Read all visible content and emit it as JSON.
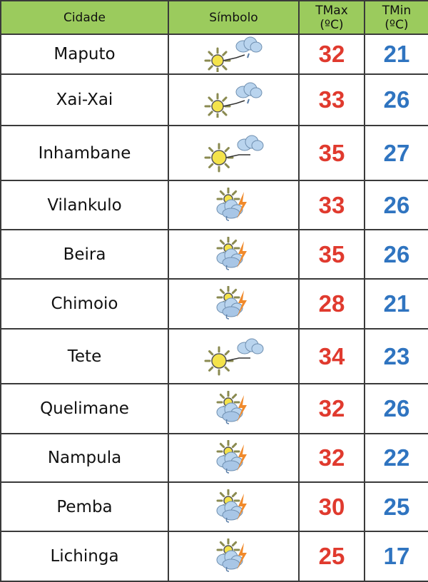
{
  "headers": {
    "city": "Cidade",
    "symbol": "Símbolo",
    "tmax": "TMax",
    "tmax_unit": "(ºC)",
    "tmin": "TMin",
    "tmin_unit": "(ºC)"
  },
  "colors": {
    "header_bg": "#9bcb5d",
    "tmax": "#e03a2e",
    "tmin": "#2f74c0"
  },
  "rows": [
    {
      "city": "Maputo",
      "icon": "sun-cloud-rain-icon",
      "tmax": "32",
      "tmin": "21"
    },
    {
      "city": "Xai-Xai",
      "icon": "sun-cloud-rain-icon",
      "tmax": "33",
      "tmin": "26"
    },
    {
      "city": "Inhambane",
      "icon": "sun-cloud-icon",
      "tmax": "35",
      "tmin": "27"
    },
    {
      "city": "Vilankulo",
      "icon": "thunderstorm-icon",
      "tmax": "33",
      "tmin": "26"
    },
    {
      "city": "Beira",
      "icon": "thunderstorm-icon",
      "tmax": "35",
      "tmin": "26"
    },
    {
      "city": "Chimoio",
      "icon": "thunderstorm-icon",
      "tmax": "28",
      "tmin": "21"
    },
    {
      "city": "Tete",
      "icon": "sun-cloud-icon",
      "tmax": "34",
      "tmin": "23"
    },
    {
      "city": "Quelimane",
      "icon": "thunderstorm-icon",
      "tmax": "32",
      "tmin": "26"
    },
    {
      "city": "Nampula",
      "icon": "thunderstorm-icon",
      "tmax": "32",
      "tmin": "22"
    },
    {
      "city": "Pemba",
      "icon": "thunderstorm-icon",
      "tmax": "30",
      "tmin": "25"
    },
    {
      "city": "Lichinga",
      "icon": "thunderstorm-icon",
      "tmax": "25",
      "tmin": "17"
    }
  ]
}
